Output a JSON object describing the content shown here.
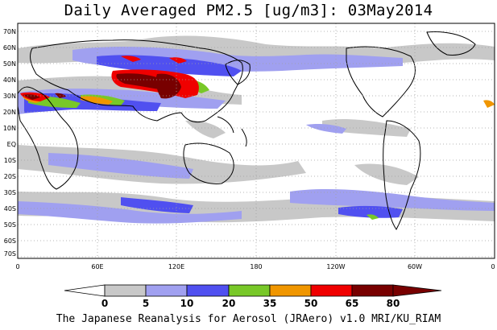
{
  "title": "Daily Averaged PM2.5 [ug/m3]: 03May2014",
  "footer": "The Japanese Reanalysis for Aerosol (JRAero) v1.0 MRI/KU_RIAM",
  "map": {
    "projection": "equirectangular",
    "lon_range": [
      0,
      360
    ],
    "lat_range": [
      -75,
      75
    ],
    "grid": "dotted",
    "lat_labels": [
      "70N",
      "60N",
      "50N",
      "40N",
      "30N",
      "20N",
      "10N",
      "EQ",
      "10S",
      "20S",
      "30S",
      "40S",
      "50S",
      "60S",
      "70S"
    ],
    "lon_labels": [
      "0",
      "60E",
      "120E",
      "180",
      "120W",
      "60W",
      "0"
    ]
  },
  "colorbar": {
    "levels": [
      "0",
      "5",
      "10",
      "20",
      "35",
      "50",
      "65",
      "80"
    ],
    "colors": [
      "#ffffff",
      "#c8c8c8",
      "#a0a0f0",
      "#5050f0",
      "#78c828",
      "#f09600",
      "#f00000",
      "#780000"
    ]
  },
  "colors": {
    "land_outline": "#000000",
    "grid": "#a0a0a0"
  }
}
